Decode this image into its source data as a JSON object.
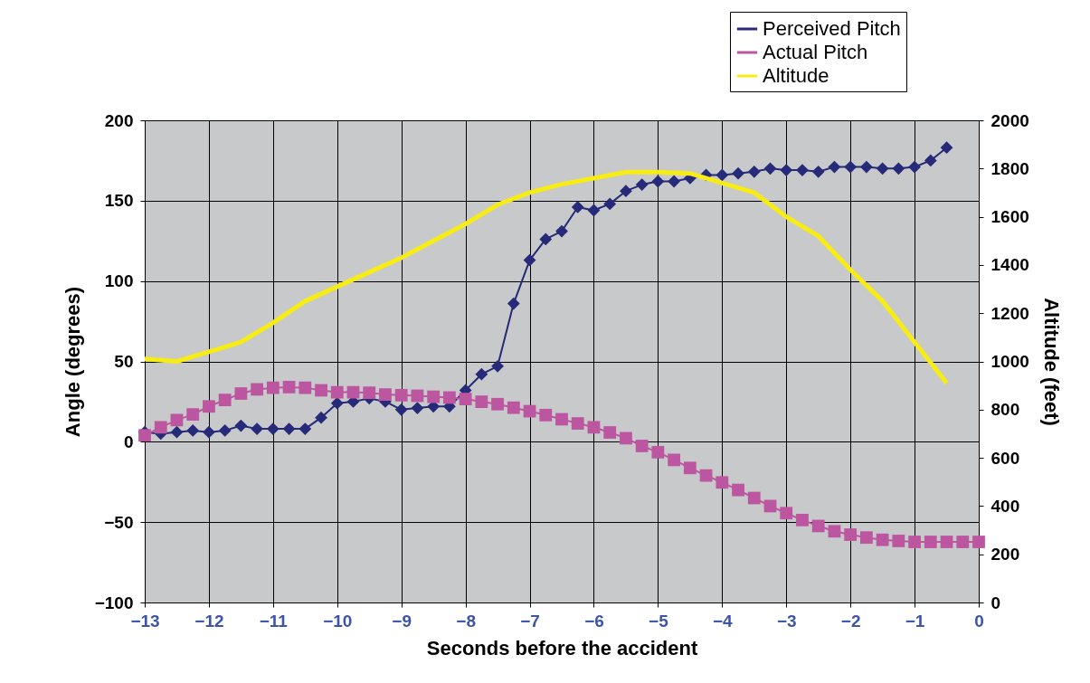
{
  "chart_data": {
    "type": "line",
    "xlabel": "Seconds before the accident",
    "ylabel": "Angle (degrees)",
    "y2label": "Altitude (feet)",
    "x": [
      -13,
      -12.75,
      -12.5,
      -12.25,
      -12,
      -11.75,
      -11.5,
      -11.25,
      -11,
      -10.75,
      -10.5,
      -10.25,
      -10,
      -9.75,
      -9.5,
      -9.25,
      -9,
      -8.75,
      -8.5,
      -8.25,
      -8,
      -7.75,
      -7.5,
      -7.25,
      -7,
      -6.75,
      -6.5,
      -6.25,
      -6,
      -5.75,
      -5.5,
      -5.25,
      -5,
      -4.75,
      -4.5,
      -4.25,
      -4,
      -3.75,
      -3.5,
      -3.25,
      -3,
      -2.75,
      -2.5,
      -2.25,
      -2,
      -1.75,
      -1.5,
      -1.25,
      -1,
      -0.75,
      -0.5,
      -0.25,
      0
    ],
    "series": [
      {
        "name": "Perceived Pitch",
        "color": "#262a78",
        "marker": "diamond",
        "x": [
          -13,
          -12.75,
          -12.5,
          -12.25,
          -12,
          -11.75,
          -11.5,
          -11.25,
          -11,
          -10.75,
          -10.5,
          -10.25,
          -10,
          -9.75,
          -9.5,
          -9.25,
          -9,
          -8.75,
          -8.5,
          -8.25,
          -8,
          -7.75,
          -7.5,
          -7.25,
          -7,
          -6.75,
          -6.5,
          -6.25,
          -6,
          -5.75,
          -5.5,
          -5.25,
          -5,
          -4.75,
          -4.5,
          -4.25,
          -4,
          -3.75,
          -3.5,
          -3.25,
          -3,
          -2.75,
          -2.5,
          -2.25,
          -2,
          -1.75,
          -1.5,
          -1.25,
          -1,
          -0.75,
          -0.5
        ],
        "values": [
          6,
          5,
          6,
          7,
          6,
          7,
          10,
          8,
          8,
          8,
          8,
          15,
          24,
          25,
          27,
          25,
          20,
          21,
          22,
          22,
          32,
          42,
          47,
          86,
          113,
          126,
          131,
          146,
          144,
          148,
          156,
          160,
          162,
          162,
          164,
          166,
          166,
          167,
          168,
          170,
          169,
          169,
          168,
          171,
          171,
          171,
          170,
          170,
          171,
          175,
          183
        ]
      },
      {
        "name": "Actual Pitch",
        "color": "#bc56a0",
        "marker": "square",
        "values": [
          4,
          9,
          13.5,
          17,
          22,
          26,
          30,
          32.6,
          33.6,
          34,
          33.6,
          32,
          30.8,
          30.8,
          30.5,
          29.4,
          29,
          28.6,
          28,
          27.5,
          26.6,
          24.9,
          23.4,
          21.2,
          19,
          16.6,
          14,
          11.4,
          9,
          5.8,
          2.2,
          -2.6,
          -6.5,
          -11.3,
          -16.3,
          -21,
          -25.3,
          -30,
          -35,
          -40,
          -44.4,
          -48.7,
          -52.4,
          -55.7,
          -57.8,
          -59.6,
          -61,
          -61.7,
          -62.3,
          -62.3,
          -62.3,
          -62.3,
          -62.3
        ]
      },
      {
        "name": "Altitude",
        "color": "#f7ec13",
        "marker": "none",
        "axis": "y2",
        "x": [
          -13,
          -12.5,
          -12,
          -11.5,
          -11,
          -10.5,
          -10,
          -9.5,
          -9,
          -8.5,
          -8,
          -7.5,
          -7,
          -6.5,
          -6,
          -5.5,
          -5,
          -4.5,
          -4,
          -3.5,
          -3,
          -2.5,
          -2,
          -1.5,
          -1,
          -0.5
        ],
        "values": [
          1010,
          1000,
          1040,
          1080,
          1160,
          1250,
          1310,
          1370,
          1430,
          1500,
          1570,
          1650,
          1700,
          1735,
          1760,
          1785,
          1785,
          1780,
          1740,
          1700,
          1600,
          1520,
          1380,
          1250,
          1080,
          910
        ]
      }
    ],
    "xlim": [
      -13,
      0
    ],
    "xticks": [
      -13,
      -12,
      -11,
      -10,
      -9,
      -8,
      -7,
      -6,
      -5,
      -4,
      -3,
      -2,
      -1,
      0
    ],
    "ylim": [
      -100,
      200
    ],
    "yticks": [
      -100,
      -50,
      0,
      50,
      100,
      150,
      200
    ],
    "y2lim": [
      0,
      2000
    ],
    "y2ticks": [
      0,
      200,
      400,
      600,
      800,
      1000,
      1200,
      1400,
      1600,
      1800,
      2000
    ],
    "grid": true,
    "legend": "top right"
  }
}
